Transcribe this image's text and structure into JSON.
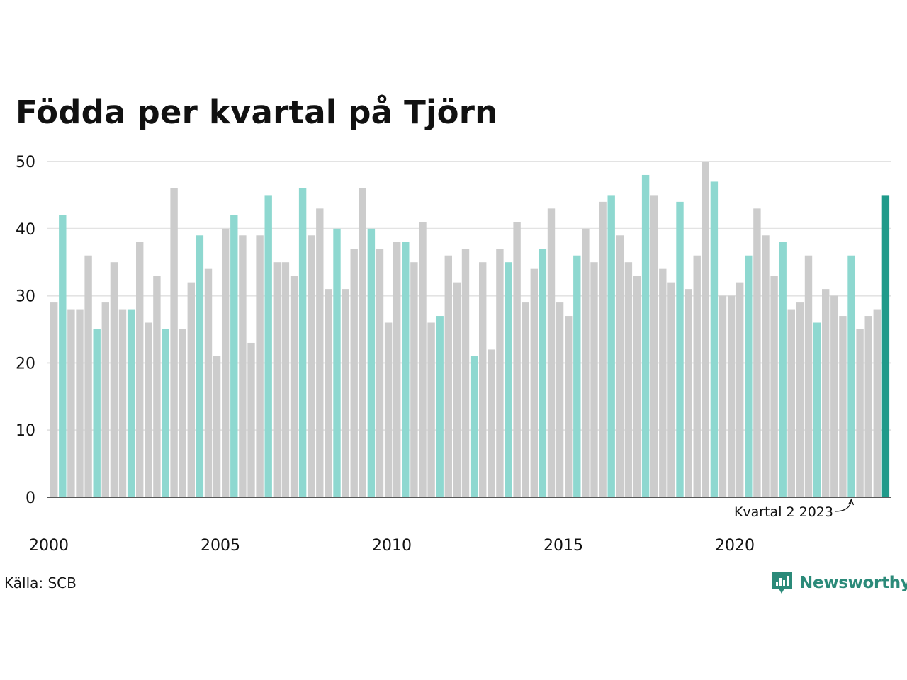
{
  "chart_data": {
    "type": "bar",
    "title": "Födda per kvartal på Tjörn",
    "source": "Källa: SCB",
    "brand": "Newsworthy",
    "annotation": "Kvartal 2 2023",
    "ylim": [
      0,
      50
    ],
    "yticks": [
      0,
      10,
      20,
      30,
      40,
      50
    ],
    "xtick_labels": [
      "2000",
      "2005",
      "2010",
      "2015",
      "2020"
    ],
    "grid": true,
    "highlight_quarter": 2,
    "colors": {
      "normal": "#cccccc",
      "highlight": "#8ed8d0",
      "latest": "#1f9a8a"
    },
    "start_year": 2000,
    "values": [
      29,
      42,
      28,
      28,
      36,
      25,
      29,
      35,
      28,
      28,
      38,
      26,
      33,
      25,
      46,
      25,
      32,
      39,
      34,
      21,
      40,
      42,
      39,
      23,
      39,
      45,
      35,
      35,
      33,
      46,
      39,
      43,
      31,
      40,
      31,
      37,
      46,
      40,
      37,
      26,
      38,
      38,
      35,
      41,
      26,
      27,
      36,
      32,
      37,
      21,
      35,
      22,
      37,
      35,
      41,
      29,
      34,
      37,
      43,
      29,
      27,
      36,
      40,
      35,
      44,
      45,
      39,
      35,
      33,
      48,
      45,
      34,
      32,
      44,
      31,
      36,
      50,
      47,
      30,
      30,
      32,
      36,
      43,
      39,
      33,
      38,
      28,
      29,
      36,
      26,
      31,
      30,
      27,
      36,
      25,
      27,
      28,
      45
    ]
  }
}
